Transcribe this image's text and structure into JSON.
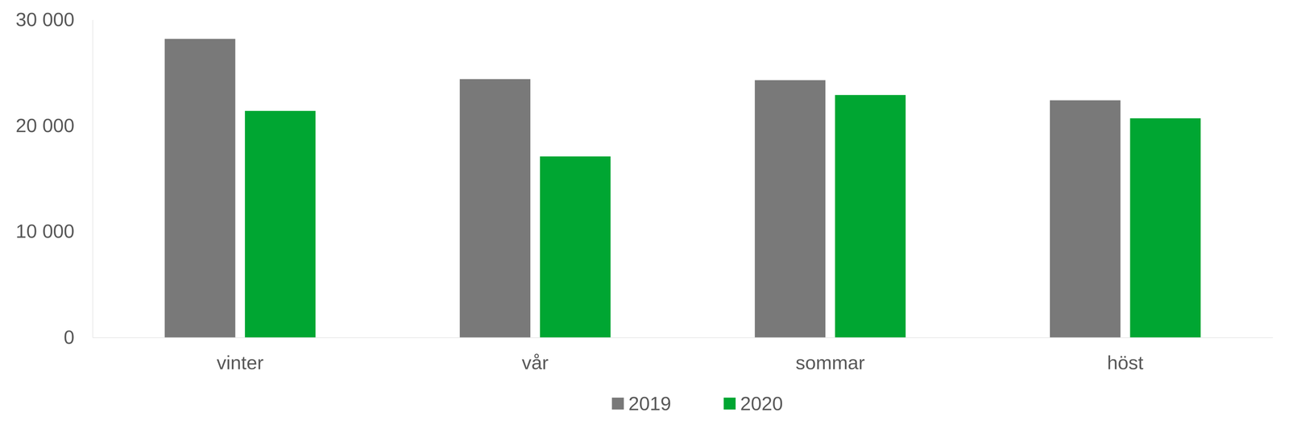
{
  "chart_data": {
    "type": "bar",
    "categories": [
      "vinter",
      "vår",
      "sommar",
      "höst"
    ],
    "series": [
      {
        "name": "2019",
        "color": "#797979",
        "values": [
          28200,
          24400,
          24300,
          22400
        ]
      },
      {
        "name": "2020",
        "color": "#00a632",
        "values": [
          21400,
          17100,
          22900,
          20700
        ]
      }
    ],
    "ylim": [
      0,
      30000
    ],
    "yticks": [
      0,
      {
        "value": 10000,
        "label": "10 000"
      },
      {
        "value": 20000,
        "label": "20 000"
      },
      {
        "value": 30000,
        "label": "30 000"
      }
    ],
    "grid": false,
    "legend": "bottom"
  }
}
